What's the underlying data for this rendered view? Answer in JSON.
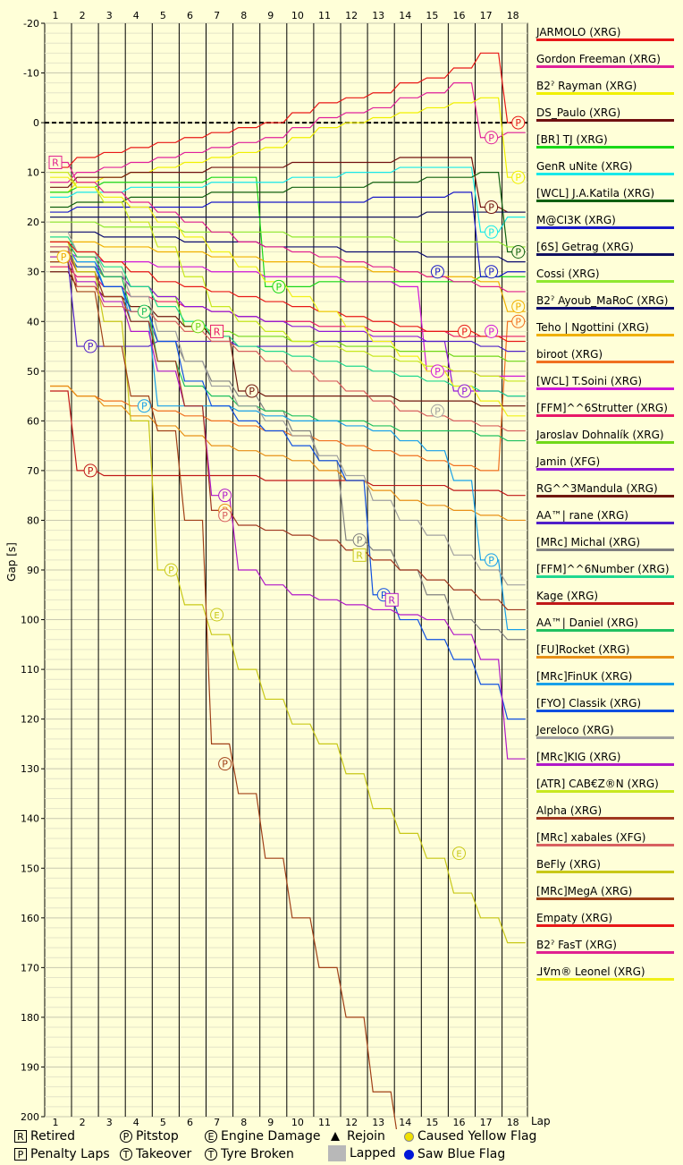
{
  "chart_data": {
    "type": "line",
    "xlabel": "Lap",
    "ylabel": "Gap [s]",
    "x": [
      1,
      2,
      3,
      4,
      5,
      6,
      7,
      8,
      9,
      10,
      11,
      12,
      13,
      14,
      15,
      16,
      17,
      18
    ],
    "xlim": [
      1,
      18.5
    ],
    "ylim": [
      -20,
      200
    ],
    "y_inverted": true,
    "y_ticks": [
      -20,
      -10,
      0,
      10,
      20,
      30,
      40,
      50,
      60,
      70,
      80,
      90,
      100,
      110,
      120,
      130,
      140,
      150,
      160,
      170,
      180,
      190,
      200
    ],
    "grid": true,
    "legend_position": "right",
    "series": [
      {
        "name": "JARMOLO (XRG)",
        "color": "#e81818",
        "values": [
          9,
          7,
          6,
          5,
          4,
          3,
          2,
          1,
          0,
          -2,
          -4,
          -5,
          -6,
          -8,
          -9,
          -11,
          -14,
          0
        ]
      },
      {
        "name": "Gordon Freeman (XRG)",
        "color": "#e0209a",
        "values": [
          12,
          10,
          9,
          8,
          7,
          6,
          5,
          4,
          3,
          1,
          -1,
          -2,
          -3,
          -5,
          -6,
          -8,
          3,
          2
        ]
      },
      {
        "name": "B2ˀ Rayman (XRG)",
        "color": "#f0f000",
        "values": [
          14,
          12,
          11,
          10,
          9,
          8,
          7,
          6,
          5,
          3,
          1,
          0,
          -1,
          -2,
          -3,
          -4,
          -5,
          11
        ]
      },
      {
        "name": "DS_Paulo (XRG)",
        "color": "#701010",
        "values": [
          13,
          11,
          11,
          10,
          10,
          10,
          9,
          9,
          9,
          8,
          8,
          8,
          8,
          7,
          7,
          7,
          17,
          18
        ]
      },
      {
        "name": "[BR] TJ (XRG)",
        "color": "#18d818",
        "values": [
          14,
          13,
          12,
          12,
          12,
          12,
          11,
          11,
          33,
          33,
          32,
          32,
          32,
          32,
          32,
          32,
          31,
          31
        ]
      },
      {
        "name": "GenR uNite (XRG)",
        "color": "#18e8e8",
        "values": [
          15,
          14,
          14,
          13,
          13,
          13,
          12,
          12,
          12,
          11,
          11,
          10,
          10,
          9,
          9,
          9,
          22,
          19
        ]
      },
      {
        "name": "[WCL] J.A.Katila (XRG)",
        "color": "#106010",
        "values": [
          17,
          16,
          16,
          15,
          15,
          15,
          14,
          14,
          14,
          13,
          13,
          13,
          12,
          12,
          11,
          11,
          10,
          26
        ]
      },
      {
        "name": "M@CI3K (XRG)",
        "color": "#1818c8",
        "values": [
          18,
          17,
          17,
          17,
          17,
          17,
          16,
          16,
          16,
          16,
          16,
          16,
          15,
          15,
          15,
          14,
          31,
          30
        ]
      },
      {
        "name": "[6S] Getrag (XRG)",
        "color": "#101060",
        "values": [
          19,
          19,
          19,
          19,
          19,
          19,
          19,
          19,
          19,
          19,
          19,
          19,
          19,
          19,
          18,
          18,
          18,
          18
        ]
      },
      {
        "name": "Cossi (XRG)",
        "color": "#90e830",
        "values": [
          20,
          20,
          21,
          21,
          21,
          22,
          22,
          22,
          22,
          23,
          23,
          23,
          23,
          24,
          24,
          24,
          24,
          25
        ]
      },
      {
        "name": "B2ˀ Ayoub_MaRoC (XRG)",
        "color": "#0c0c70",
        "values": [
          22,
          22,
          23,
          23,
          23,
          24,
          24,
          24,
          25,
          25,
          25,
          26,
          26,
          26,
          27,
          27,
          27,
          28
        ]
      },
      {
        "name": "Teho | Ngottini (XRG)",
        "color": "#f0b000",
        "values": [
          24,
          24,
          25,
          25,
          26,
          26,
          27,
          27,
          28,
          28,
          29,
          29,
          30,
          30,
          31,
          31,
          32,
          38
        ]
      },
      {
        "name": "biroot (XRG)",
        "color": "#f07020",
        "values": [
          53,
          55,
          56,
          57,
          58,
          59,
          60,
          61,
          62,
          63,
          64,
          65,
          66,
          67,
          68,
          69,
          70,
          40
        ]
      },
      {
        "name": "[WCL] T.Soini (XRG)",
        "color": "#d018d8",
        "values": [
          26,
          27,
          28,
          28,
          29,
          29,
          30,
          30,
          31,
          31,
          31,
          32,
          32,
          33,
          50,
          50,
          51,
          51
        ]
      },
      {
        "name": "[FFM]^^6Strutter (XRG)",
        "color": "#e81868",
        "values": [
          29,
          31,
          33,
          35,
          36,
          37,
          38,
          39,
          40,
          40,
          41,
          41,
          42,
          42,
          42,
          43,
          43,
          43
        ]
      },
      {
        "name": "Jaroslav Dohnalík (XRG)",
        "color": "#70d818",
        "values": [
          27,
          29,
          31,
          33,
          35,
          41,
          42,
          43,
          43,
          44,
          44,
          45,
          45,
          46,
          46,
          47,
          47,
          48
        ]
      },
      {
        "name": "Jamin (XFG)",
        "color": "#9018d8",
        "values": [
          25,
          28,
          31,
          33,
          35,
          37,
          38,
          39,
          40,
          41,
          42,
          42,
          43,
          43,
          44,
          54,
          54,
          55
        ]
      },
      {
        "name": "RG^^3Mandula (XRG)",
        "color": "#701810",
        "values": [
          30,
          33,
          35,
          37,
          39,
          41,
          43,
          54,
          55,
          55,
          55,
          55,
          55,
          56,
          56,
          56,
          57,
          57
        ]
      },
      {
        "name": "AA™| rane (XRG)",
        "color": "#5020c8",
        "values": [
          28,
          45,
          45,
          45,
          44,
          44,
          44,
          45,
          45,
          45,
          44,
          44,
          44,
          44,
          44,
          44,
          45,
          46
        ]
      },
      {
        "name": "[MRc] Michal (XRG)",
        "color": "#808080",
        "values": [
          26,
          30,
          35,
          40,
          44,
          48,
          52,
          55,
          58,
          62,
          68,
          84,
          86,
          90,
          95,
          100,
          102,
          104
        ]
      },
      {
        "name": "[FFM]^^6Number (XRG)",
        "color": "#20d890",
        "values": [
          23,
          26,
          29,
          33,
          37,
          40,
          43,
          45,
          46,
          47,
          48,
          49,
          50,
          51,
          52,
          53,
          54,
          55
        ]
      },
      {
        "name": "Kage (XRG)",
        "color": "#c01818",
        "values": [
          54,
          70,
          71,
          71,
          71,
          71,
          71,
          71,
          72,
          72,
          72,
          72,
          73,
          73,
          73,
          74,
          74,
          75
        ]
      },
      {
        "name": "AA™| Daniel (XRG)",
        "color": "#20c060",
        "values": [
          24,
          27,
          31,
          38,
          48,
          53,
          55,
          57,
          58,
          59,
          60,
          60,
          61,
          62,
          62,
          62,
          63,
          64
        ]
      },
      {
        "name": "[FU]Rocket (XRG)",
        "color": "#e89018",
        "values": [
          53,
          55,
          57,
          59,
          61,
          63,
          65,
          66,
          67,
          68,
          70,
          72,
          74,
          76,
          77,
          78,
          79,
          80
        ]
      },
      {
        "name": "[MRc]FinUK (XRG)",
        "color": "#18a0e8",
        "values": [
          25,
          28,
          33,
          40,
          57,
          57,
          57,
          58,
          59,
          60,
          60,
          61,
          62,
          64,
          66,
          72,
          88,
          102
        ]
      },
      {
        "name": "[FYO] Classik (XRG)",
        "color": "#1050e0",
        "values": [
          26,
          29,
          33,
          38,
          44,
          52,
          57,
          60,
          62,
          65,
          68,
          72,
          95,
          100,
          104,
          108,
          113,
          120
        ]
      },
      {
        "name": "Jereloco (XRG)",
        "color": "#a0a0a0",
        "values": [
          22,
          26,
          30,
          35,
          42,
          48,
          53,
          57,
          60,
          63,
          67,
          71,
          76,
          80,
          83,
          87,
          90,
          93
        ]
      },
      {
        "name": "[MRc]KIG (XRG)",
        "color": "#b018c8",
        "values": [
          27,
          32,
          36,
          42,
          50,
          57,
          75,
          90,
          93,
          95,
          96,
          97,
          98,
          99,
          100,
          103,
          108,
          128
        ]
      },
      {
        "name": "[ATR] CAB€Z®N (XRG)",
        "color": "#c8e820",
        "values": [
          10,
          13,
          16,
          20,
          25,
          31,
          37,
          40,
          42,
          44,
          45,
          46,
          47,
          48,
          49,
          50,
          51,
          52
        ]
      },
      {
        "name": "Alpha (XRG)",
        "color": "#a03820",
        "values": [
          26,
          30,
          35,
          40,
          48,
          57,
          78,
          81,
          82,
          83,
          84,
          86,
          88,
          90,
          92,
          94,
          96,
          98
        ]
      },
      {
        "name": "[MRc] xabales (XFG)",
        "color": "#d86060",
        "values": [
          25,
          33,
          37,
          38,
          40,
          42,
          44,
          46,
          48,
          50,
          52,
          54,
          56,
          58,
          59,
          60,
          61,
          62
        ]
      },
      {
        "name": "BeFly (XRG)",
        "color": "#c8c818",
        "values": [
          24,
          30,
          40,
          60,
          90,
          97,
          103,
          110,
          116,
          121,
          125,
          131,
          138,
          143,
          148,
          155,
          160,
          165
        ]
      },
      {
        "name": "[MRc]MegA (XRG)",
        "color": "#a04018",
        "values": [
          28,
          34,
          45,
          55,
          62,
          80,
          125,
          135,
          148,
          160,
          170,
          180,
          195,
          210,
          210,
          210,
          210,
          210
        ]
      },
      {
        "name": "Empaty (XRG)",
        "color": "#e81818",
        "values": [
          24,
          26,
          28,
          30,
          32,
          33,
          34,
          35,
          36,
          37,
          38,
          39,
          40,
          41,
          42,
          42,
          43,
          44
        ]
      },
      {
        "name": "B2ˀ FasT (XRG)",
        "color": "#e02090",
        "values": [
          8,
          12,
          14,
          16,
          18,
          20,
          22,
          24,
          25,
          26,
          27,
          28,
          29,
          30,
          31,
          32,
          33,
          34
        ]
      },
      {
        "name": "ᒧᕓm® Leonel (XRG)",
        "color": "#f0f018",
        "values": [
          11,
          13,
          15,
          17,
          20,
          23,
          26,
          29,
          32,
          35,
          38,
          41,
          44,
          47,
          50,
          53,
          56,
          59
        ]
      }
    ],
    "events": [
      {
        "type": "retired",
        "lap": 1,
        "gap": 8,
        "series": "B2ˀ FasT (XRG)"
      },
      {
        "type": "pitstop",
        "lap": 1.3,
        "gap": 27,
        "series": "Teho | Ngottini (XRG)"
      },
      {
        "type": "pitstop",
        "lap": 2.3,
        "gap": 45,
        "series": "AA™| rane (XRG)"
      },
      {
        "type": "pitstop",
        "lap": 2.3,
        "gap": 70,
        "series": "Kage (XRG)"
      },
      {
        "type": "pitstop",
        "lap": 4.3,
        "gap": 38,
        "series": "AA™| Daniel (XRG)"
      },
      {
        "type": "pitstop",
        "lap": 4.3,
        "gap": 57,
        "series": "[MRc]FinUK (XRG)"
      },
      {
        "type": "pitstop",
        "lap": 5.3,
        "gap": 90,
        "series": "BeFly (XRG)"
      },
      {
        "type": "pitstop",
        "lap": 6.3,
        "gap": 41,
        "series": "Jaroslav Dohnalík (XRG)"
      },
      {
        "type": "retired",
        "lap": 7,
        "gap": 42,
        "series": "[FFM]^^6Strutter (XRG)"
      },
      {
        "type": "pitstop",
        "lap": 7.3,
        "gap": 75,
        "series": "[MRc]KIG (XRG)"
      },
      {
        "type": "pitstop",
        "lap": 7.3,
        "gap": 78,
        "series": "[FU]Rocket (XRG)"
      },
      {
        "type": "pitstop",
        "lap": 7.3,
        "gap": 79,
        "series": "[MRc] xabales (XFG)"
      },
      {
        "type": "engine",
        "lap": 7,
        "gap": 99,
        "series": "BeFly (XRG)"
      },
      {
        "type": "pitstop",
        "lap": 7.3,
        "gap": 129,
        "series": "[MRc]MegA (XRG)"
      },
      {
        "type": "pitstop",
        "lap": 8.3,
        "gap": 54,
        "series": "RG^^3Mandula (XRG)"
      },
      {
        "type": "pitstop",
        "lap": 9.3,
        "gap": 33,
        "series": "[BR] TJ (XRG)"
      },
      {
        "type": "pitstop",
        "lap": 12.3,
        "gap": 84,
        "series": "[MRc] Michal (XRG)"
      },
      {
        "type": "retired",
        "lap": 12.3,
        "gap": 87,
        "series": "BeFly (XRG)"
      },
      {
        "type": "pitstop",
        "lap": 13.2,
        "gap": 95,
        "series": "[FYO] Classik (XRG)"
      },
      {
        "type": "retired",
        "lap": 13.5,
        "gap": 96,
        "series": "[MRc]KIG (XRG)"
      },
      {
        "type": "pitstop",
        "lap": 15.2,
        "gap": 30,
        "series": "M@CI3K (XRG)"
      },
      {
        "type": "pitstop",
        "lap": 15.2,
        "gap": 50,
        "series": "[WCL] T.Soini (XRG)"
      },
      {
        "type": "pitstop",
        "lap": 15.2,
        "gap": 58,
        "series": "Jereloco (XRG)"
      },
      {
        "type": "engine",
        "lap": 16,
        "gap": 147,
        "series": "BeFly (XRG)"
      },
      {
        "type": "pitstop",
        "lap": 16.2,
        "gap": 42,
        "series": "Empaty (XRG)"
      },
      {
        "type": "pitstop",
        "lap": 16.2,
        "gap": 54,
        "series": "Jamin (XFG)"
      },
      {
        "type": "pitstop",
        "lap": 17.2,
        "gap": 3,
        "series": "Gordon Freeman (XRG)"
      },
      {
        "type": "pitstop",
        "lap": 17.2,
        "gap": 17,
        "series": "DS_Paulo (XRG)"
      },
      {
        "type": "pitstop",
        "lap": 17.2,
        "gap": 22,
        "series": "GenR uNite (XRG)"
      },
      {
        "type": "pitstop",
        "lap": 17.2,
        "gap": 30,
        "series": "M@CI3K (XRG)"
      },
      {
        "type": "pitstop",
        "lap": 17.2,
        "gap": 42,
        "series": "[WCL] T.Soini (XRG)"
      },
      {
        "type": "pitstop",
        "lap": 17.2,
        "gap": 88,
        "series": "[MRc]FinUK (XRG)"
      },
      {
        "type": "pitstop",
        "lap": 18.2,
        "gap": 0,
        "series": "JARMOLO (XRG)"
      },
      {
        "type": "pitstop",
        "lap": 18.2,
        "gap": 11,
        "series": "B2ˀ Rayman (XRG)"
      },
      {
        "type": "pitstop",
        "lap": 18.2,
        "gap": 26,
        "series": "[WCL] J.A.Katila (XRG)"
      },
      {
        "type": "pitstop",
        "lap": 18.2,
        "gap": 37,
        "series": "Teho | Ngottini (XRG)"
      },
      {
        "type": "pitstop",
        "lap": 18.2,
        "gap": 40,
        "series": "biroot (XRG)"
      }
    ]
  },
  "key": {
    "retired": {
      "glyph": "R",
      "label": "Retired"
    },
    "pitstop": {
      "glyph": "P",
      "label": "Pitstop"
    },
    "engine": {
      "glyph": "E",
      "label": "Engine Damage"
    },
    "rejoin": {
      "glyph": "▲",
      "label": "Rejoin"
    },
    "yellow": {
      "label": "Caused Yellow Flag"
    },
    "penalty": {
      "glyph": "P",
      "label": "Penalty Laps"
    },
    "takeover": {
      "glyph": "T",
      "label": "Takeover"
    },
    "tyre": {
      "glyph": "T",
      "label": "Tyre Broken"
    },
    "lapped": {
      "label": "Lapped"
    },
    "blue": {
      "label": "Saw Blue Flag"
    }
  }
}
